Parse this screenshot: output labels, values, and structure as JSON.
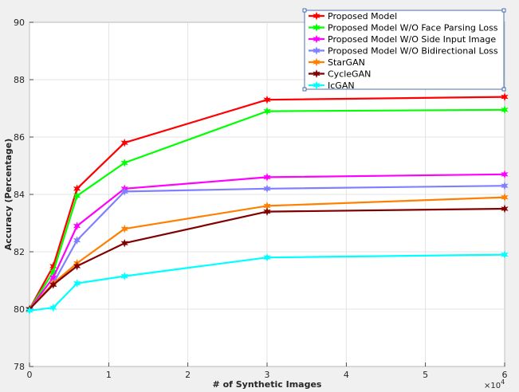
{
  "chart_data": {
    "type": "line",
    "xlabel": "# of Synthetic Images",
    "ylabel": "Accuracy (Percentage)",
    "x_multiplier_label": "×10",
    "x_multiplier_exp": "4",
    "xlim": [
      0,
      60000
    ],
    "ylim": [
      78,
      90
    ],
    "xticks": [
      0,
      10000,
      20000,
      30000,
      40000,
      50000,
      60000
    ],
    "xtick_labels": [
      "0",
      "1",
      "2",
      "3",
      "4",
      "5",
      "6"
    ],
    "yticks": [
      78,
      80,
      82,
      84,
      86,
      88,
      90
    ],
    "ytick_labels": [
      "78",
      "80",
      "82",
      "84",
      "86",
      "88",
      "90"
    ],
    "grid": true,
    "legend_position": "top-right",
    "x": [
      0,
      3000,
      6000,
      12000,
      30000,
      60000
    ],
    "series": [
      {
        "name": "Proposed Model",
        "color": "#ff0000",
        "values": [
          80.0,
          81.5,
          84.2,
          85.8,
          87.3,
          87.4
        ]
      },
      {
        "name": "Proposed Model W/O Face Parsing Loss",
        "color": "#00ff00",
        "values": [
          80.0,
          81.3,
          83.95,
          85.1,
          86.9,
          86.95
        ]
      },
      {
        "name": "Proposed Model W/O Side Input Image",
        "color": "#ff00ff",
        "values": [
          80.0,
          81.1,
          82.9,
          84.2,
          84.6,
          84.7
        ]
      },
      {
        "name": "Proposed Model W/O Bidirectional Loss",
        "color": "#8080ff",
        "values": [
          80.0,
          80.9,
          82.4,
          84.1,
          84.2,
          84.3
        ]
      },
      {
        "name": "StarGAN",
        "color": "#ff8000",
        "values": [
          80.0,
          80.9,
          81.6,
          82.8,
          83.6,
          83.9
        ]
      },
      {
        "name": "CycleGAN",
        "color": "#800000",
        "values": [
          80.0,
          80.85,
          81.5,
          82.3,
          83.4,
          83.5
        ]
      },
      {
        "name": "IcGAN",
        "color": "#00ffff",
        "values": [
          79.95,
          80.05,
          80.9,
          81.15,
          81.8,
          81.9
        ]
      }
    ]
  }
}
